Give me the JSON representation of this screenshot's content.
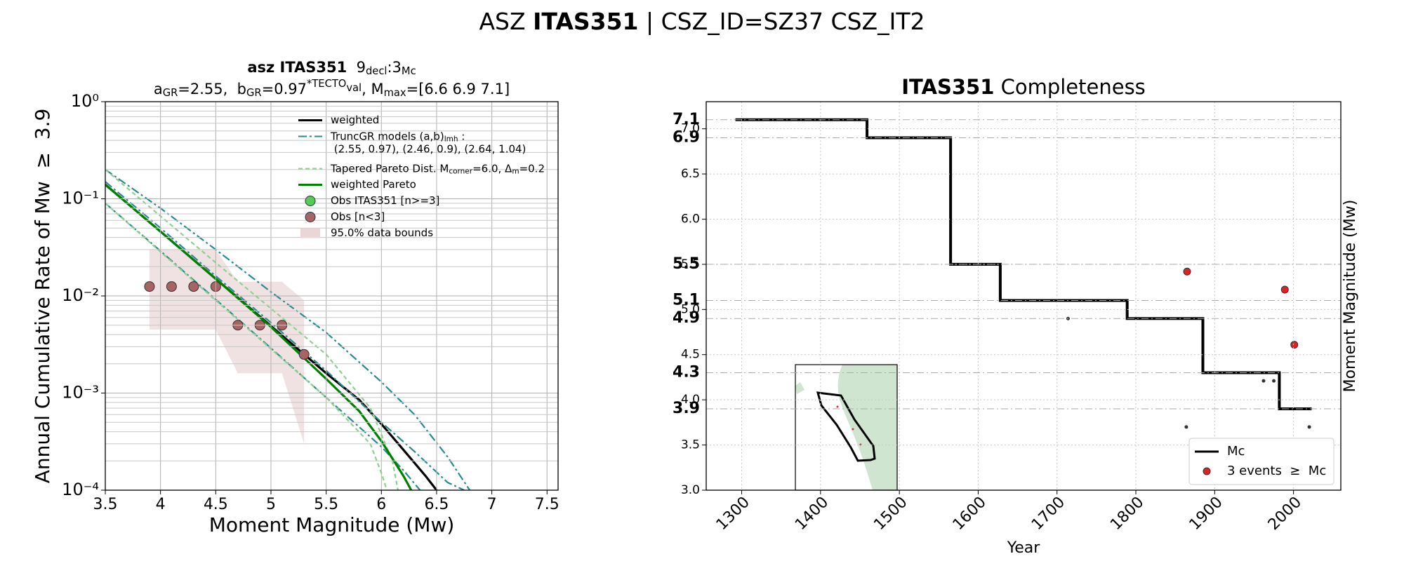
{
  "title": [
    {
      "text": "ASZ "
    },
    {
      "text": "ITAS351",
      "bold": true
    },
    {
      "text": " | CSZ_ID=SZ37 CSZ_IT2"
    }
  ],
  "chart_data": [
    {
      "type": "line",
      "log_y": true,
      "grid": true,
      "minor_grid": true,
      "legend": "upper right",
      "title": [
        {
          "text": "asz ITAS351",
          "bold": true
        },
        {
          "text": "  9"
        },
        {
          "text": "decl",
          "sub": true
        },
        {
          "text": ":3"
        },
        {
          "text": "Mc",
          "sub": true
        }
      ],
      "subtitle": [
        {
          "text": "a"
        },
        {
          "text": "GR",
          "sub": true
        },
        {
          "text": "=2.55,  b"
        },
        {
          "text": "GR",
          "sub": true
        },
        {
          "text": "=0.97"
        },
        {
          "text": "*TECTO",
          "sup": true
        },
        {
          "text": "val",
          "sup": true,
          "sub": true
        },
        {
          "text": ", M"
        },
        {
          "text": "max",
          "sub": true
        },
        {
          "text": "=[6.6 6.9 7.1]"
        }
      ],
      "xlabel": "Moment Magnitude (Mw)",
      "ylabel": "Annual Cumulative Rate of Mw  ≥  3.9",
      "xlim": [
        3.5,
        7.6
      ],
      "xticks": [
        3.5,
        4.0,
        4.5,
        5.0,
        5.5,
        6.0,
        6.5,
        7.0,
        7.5
      ],
      "ylim": [
        0.0001,
        1
      ],
      "yticks": [
        {
          "value": 0.0001,
          "label": "10⁻⁴"
        },
        {
          "value": 0.001,
          "label": "10⁻³"
        },
        {
          "value": 0.01,
          "label": "10⁻²"
        },
        {
          "value": 0.1,
          "label": "10⁻¹"
        },
        {
          "value": 1,
          "label": "10⁰"
        }
      ],
      "series": [
        {
          "name": "weighted",
          "color": "#000000",
          "style": "solid",
          "lines": [
            {
              "x": [
                3.5,
                4,
                4.5,
                5,
                5.5,
                5.8,
                6,
                6.2,
                6.4,
                6.5
              ],
              "values": [
                0.14,
                0.046,
                0.015,
                0.0049,
                0.0016,
                0.00085,
                0.00048,
                0.00026,
                0.00014,
                0.0001
              ]
            }
          ]
        },
        {
          "name": [
            {
              "text": "TruncGR models (a,b)"
            },
            {
              "text": "lmh",
              "sub": true
            },
            {
              "text": " :"
            },
            {
              "text": " (2.55, 0.97), (2.46, 0.9), (2.64, 1.04)",
              "br": true
            }
          ],
          "color": "#2a8a8f",
          "style": "dashdot",
          "lines": [
            {
              "x": [
                3.5,
                4,
                4.5,
                5,
                5.5,
                6,
                6.3,
                6.6,
                6.8
              ],
              "values": [
                0.2,
                0.08,
                0.03,
                0.011,
                0.0042,
                0.0013,
                0.0006,
                0.00022,
                0.0001
              ]
            },
            {
              "x": [
                3.5,
                4,
                4.5,
                5,
                5.5,
                6,
                6.3,
                6.6,
                6.75
              ],
              "values": [
                0.15,
                0.05,
                0.016,
                0.0053,
                0.0017,
                0.0005,
                0.00025,
                0.00012,
                0.0001
              ]
            },
            {
              "x": [
                3.5,
                4,
                4.5,
                5,
                5.5,
                6,
                6.2,
                6.35
              ],
              "values": [
                0.09,
                0.029,
                0.0092,
                0.0029,
                0.0009,
                0.00028,
                0.00016,
                0.0001
              ]
            }
          ]
        },
        {
          "name": [
            {
              "text": "Tapered Pareto Dist. M"
            },
            {
              "text": "corner",
              "sub": true
            },
            {
              "text": "=6.0, Δ"
            },
            {
              "text": "m",
              "sub": true
            },
            {
              "text": "=0.2"
            }
          ],
          "color": "#8fd08f",
          "style": "dashed",
          "lines": [
            {
              "x": [
                3.5,
                4.5,
                5.5,
                5.9,
                6.1,
                6.15
              ],
              "values": [
                0.2,
                0.022,
                0.0025,
                0.0007,
                0.0002,
                0.0001
              ]
            },
            {
              "x": [
                3.5,
                4.5,
                5.5,
                5.9,
                6.0,
                6.05
              ],
              "values": [
                0.09,
                0.009,
                0.0009,
                0.0003,
                0.00015,
                0.0001
              ]
            }
          ]
        },
        {
          "name": "weighted Pareto",
          "color": "#008000",
          "style": "solid",
          "lines": [
            {
              "x": [
                3.5,
                4,
                4.5,
                5,
                5.5,
                5.8,
                6,
                6.2,
                6.27
              ],
              "values": [
                0.14,
                0.046,
                0.015,
                0.0048,
                0.0014,
                0.00065,
                0.00032,
                0.00014,
                0.0001
              ]
            }
          ]
        },
        {
          "name": "Obs ITAS351 [n>=3]",
          "color": "#55cc55",
          "style": "markers",
          "x": [],
          "values": []
        },
        {
          "name": "Obs [n<3]",
          "color": "#a86464",
          "style": "markers",
          "x": [
            3.9,
            4.1,
            4.3,
            4.5,
            4.7,
            4.9,
            5.1,
            5.3
          ],
          "values": [
            0.0125,
            0.0125,
            0.0125,
            0.0125,
            0.005,
            0.005,
            0.005,
            0.0025
          ]
        },
        {
          "name": "95.0% data bounds",
          "color": "#ead6d6",
          "style": "band",
          "x": [
            3.9,
            4.5,
            4.7,
            5.1,
            5.3
          ],
          "lower": [
            0.0045,
            0.0045,
            0.0016,
            0.0016,
            0.0003
          ],
          "upper": [
            0.03,
            0.03,
            0.014,
            0.014,
            0.009
          ]
        }
      ]
    },
    {
      "type": "step",
      "grid": true,
      "legend": "lower right",
      "title": [
        {
          "text": "ITAS351",
          "bold": true
        },
        {
          "text": " Completeness"
        }
      ],
      "xlabel": "Year",
      "ylabel": "Moment Magnitude (Mw)",
      "xlim": [
        1255,
        2060
      ],
      "xticks": [
        1300,
        1400,
        1500,
        1600,
        1700,
        1800,
        1900,
        2000
      ],
      "ylim": [
        3,
        7.3
      ],
      "yticks": [
        {
          "value": 3,
          "label": "3.0"
        },
        3.5,
        {
          "value": 4,
          "label": "4.0"
        },
        4.5,
        {
          "value": 5,
          "label": "5.0"
        },
        5.5,
        {
          "value": 6,
          "label": "6.0"
        },
        6.5,
        {
          "value": 7,
          "label": "7.0"
        }
      ],
      "mc_ticks": [
        3.9,
        4.3,
        4.9,
        5.1,
        5.5,
        6.9,
        7.1
      ],
      "series": [
        {
          "name": "Mc",
          "color": "#000000",
          "style": "step",
          "x": [
            1292,
            1459,
            1565,
            1628,
            1789,
            1885,
            1982,
            2023
          ],
          "values": [
            7.1,
            6.9,
            5.5,
            5.1,
            4.9,
            4.3,
            3.9,
            3.9
          ]
        },
        {
          "name": "3 events  ≥  Mc",
          "color": "#dd2222",
          "style": "markers",
          "x": [
            1865,
            1989,
            2001
          ],
          "values": [
            5.42,
            5.22,
            4.61
          ]
        },
        {
          "color": "#333333",
          "style": "dots",
          "x": [
            1714,
            1864,
            1962,
            1975,
            2020,
            2011
          ],
          "values": [
            4.9,
            3.7,
            4.21,
            4.21,
            3.7,
            3.5
          ]
        }
      ]
    }
  ]
}
